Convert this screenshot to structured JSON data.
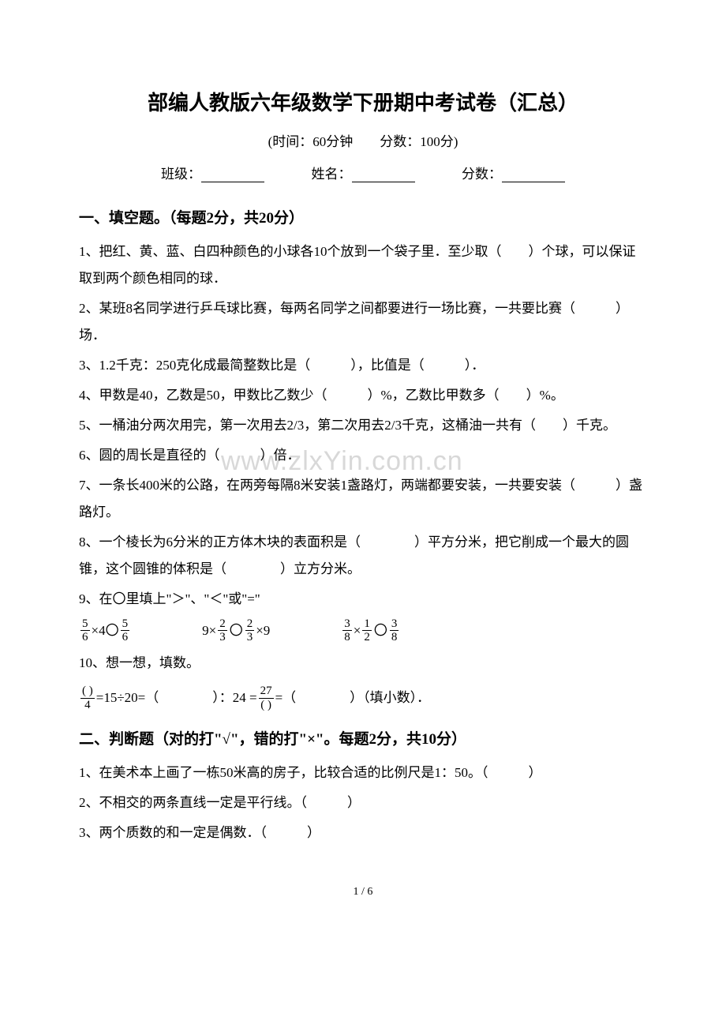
{
  "title": "部编人教版六年级数学下册期中考试卷（汇总）",
  "subtitle": "(时间：60分钟　　分数：100分)",
  "form": {
    "class_label": "班级：",
    "name_label": "姓名：",
    "score_label": "分数："
  },
  "section1": {
    "header": "一、填空题。（每题2分，共20分）",
    "q1": "1、把红、黄、蓝、白四种颜色的小球各10个放到一个袋子里．至少取（　　）个球，可以保证取到两个颜色相同的球．",
    "q2": "2、某班8名同学进行乒乓球比赛，每两名同学之间都要进行一场比赛，一共要比赛（　　　）场．",
    "q3": "3、1.2千克：250克化成最简整数比是（　　　），比值是（　　　）．",
    "q4": "4、甲数是40，乙数是50，甲数比乙数少（　　　）%，乙数比甲数多（　　）%。",
    "q5": "5、一桶油分两次用完，第一次用去2/3，第二次用去2/3千克，这桶油一共有（　　）千克。",
    "q6": "6、圆的周长是直径的（　　　）倍．",
    "q7": "7、一条长400米的公路，在两旁每隔8米安装1盏路灯，两端都要安装，一共要安装（　　　）盏路灯。",
    "q8": "8、一个棱长为6分米的正方体木块的表面积是（　　　　）平方分米，把它削成一个最大的圆锥，这个圆锥的体积是（　　　　）立方分米。",
    "q9": "9、在〇里填上\"＞\"、\"＜\"或\"=\"",
    "q9_item1_left_num": "5",
    "q9_item1_left_den": "6",
    "q9_item1_mid": "×4〇",
    "q9_item1_right_num": "5",
    "q9_item1_right_den": "6",
    "q9_item2_a": "9×",
    "q9_item2_b_num": "2",
    "q9_item2_b_den": "3",
    "q9_item2_c": "〇",
    "q9_item2_d_num": "2",
    "q9_item2_d_den": "3",
    "q9_item2_e": "×9",
    "q9_item3_a_num": "3",
    "q9_item3_a_den": "8",
    "q9_item3_b": "×",
    "q9_item3_c_num": "1",
    "q9_item3_c_den": "2",
    "q9_item3_d": "〇",
    "q9_item3_e_num": "3",
    "q9_item3_e_den": "8",
    "q10": "10、想一想，填数。",
    "q10_f1_num": "(  )",
    "q10_f1_den": "4",
    "q10_mid1": " =15÷20=（　　　　）：24 = ",
    "q10_f2_num": "27",
    "q10_f2_den": "(  )",
    "q10_mid2": " =（　　　　）（填小数）．"
  },
  "section2": {
    "header": "二、判断题（对的打\"√\"，错的打\"×\"。每题2分，共10分）",
    "q1": "1、在美术本上画了一栋50米高的房子，比较合适的比例尺是1：50。（　　　）",
    "q2": "2、不相交的两条直线一定是平行线。（　　　）",
    "q3": "3、两个质数的和一定是偶数．（　　　）"
  },
  "watermark": "www.zlxYin.com.cn",
  "footer": "1 / 6"
}
